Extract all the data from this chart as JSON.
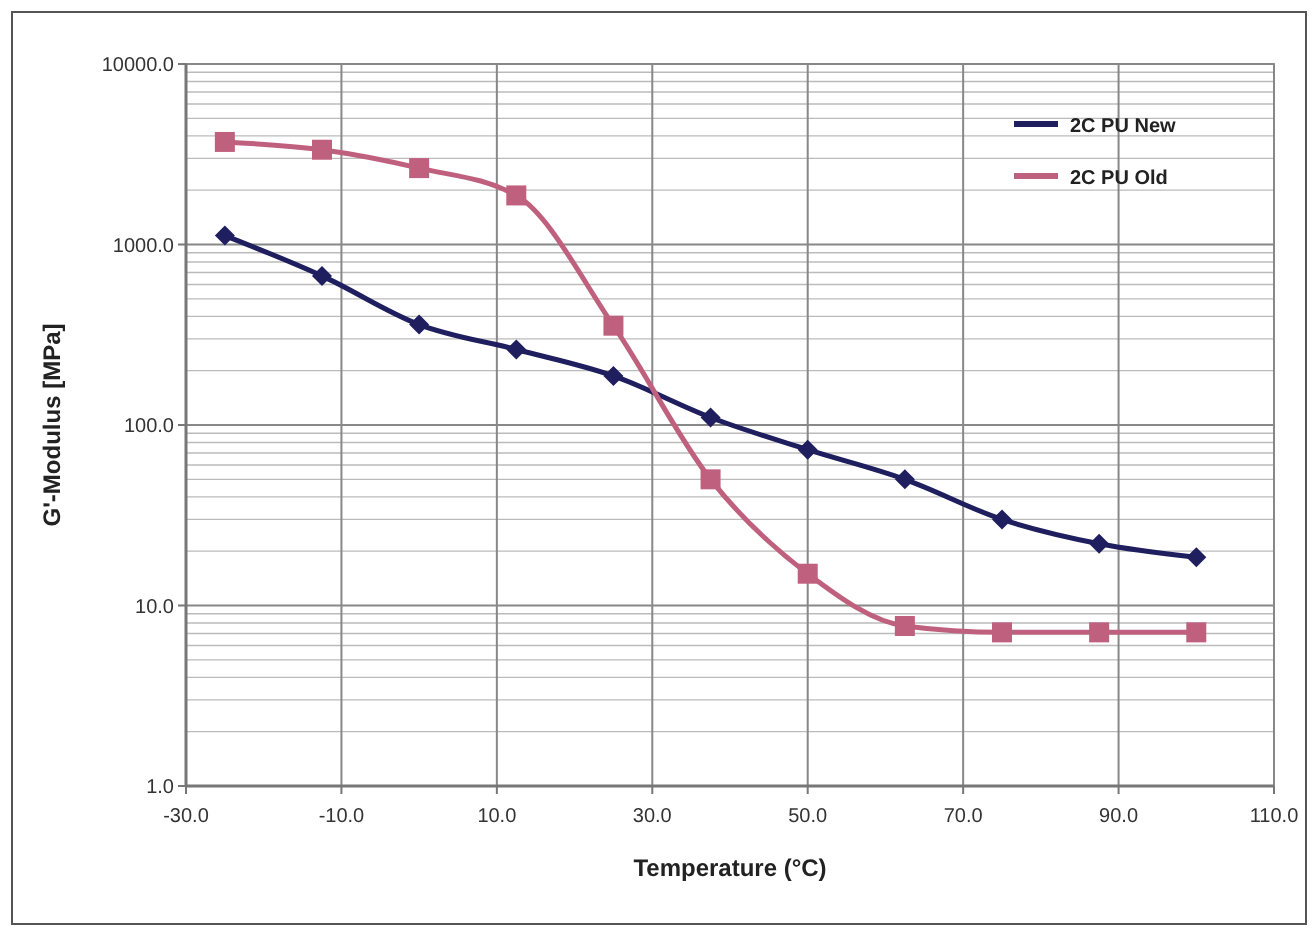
{
  "chart_data": {
    "type": "line",
    "xlabel": "Temperature (°C)",
    "ylabel": "G'-Modulus [MPa]",
    "log": "y",
    "grid": true,
    "legend": "top right",
    "line_style": "solid",
    "x": [
      -25,
      -12.5,
      0,
      12.5,
      25,
      37.5,
      50,
      62.5,
      75,
      87.5,
      100
    ],
    "xlim": [
      -30,
      110
    ],
    "xticks": [
      {
        "value": -30,
        "label": "-30.0"
      },
      {
        "value": -10,
        "label": "-10.0"
      },
      {
        "value": 10,
        "label": "10.0"
      },
      {
        "value": 30,
        "label": "30.0"
      },
      {
        "value": 50,
        "label": "50.0"
      },
      {
        "value": 70,
        "label": "70.0"
      },
      {
        "value": 90,
        "label": "90.0"
      },
      {
        "value": 110,
        "label": "110.0"
      }
    ],
    "ylim": [
      1,
      10000
    ],
    "yticks": [
      {
        "value": 1,
        "label": "1.0"
      },
      {
        "value": 10,
        "label": "10.0"
      },
      {
        "value": 100,
        "label": "100.0"
      },
      {
        "value": 1000,
        "label": "1000.0"
      },
      {
        "value": 10000,
        "label": "10000.0"
      }
    ],
    "series": [
      {
        "name": "2C PU New",
        "color": "#1f1f5f",
        "marker": "diamond",
        "values": [
          1120,
          670,
          360,
          262,
          187,
          110,
          73,
          50,
          30,
          22,
          18.5
        ]
      },
      {
        "name": "2C PU Old",
        "color": "#c0607f",
        "marker": "square",
        "values": [
          3700,
          3350,
          2650,
          1870,
          355,
          50,
          15,
          7.7,
          7.1,
          7.1,
          7.1
        ]
      }
    ]
  }
}
